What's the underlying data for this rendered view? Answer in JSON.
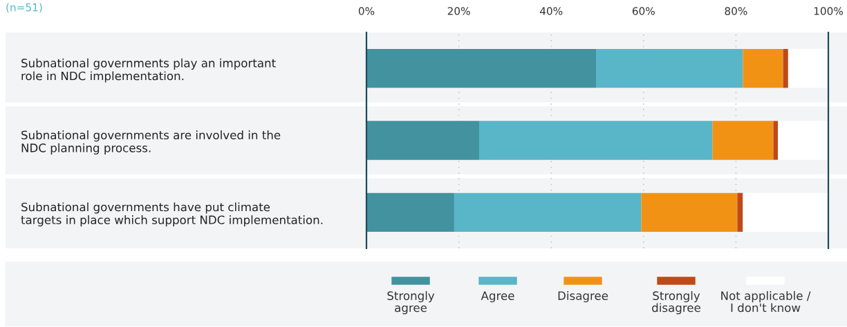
{
  "chart_data": {
    "type": "bar",
    "orientation": "horizontal",
    "stacked": true,
    "categories": [
      "Subnational governments play an important\nrole in NDC implementation.",
      "Subnational governments are involved in the\nNDC planning process.",
      "Subnational governments have put climate\ntargets in place which support NDC implementation."
    ],
    "series": [
      {
        "name": "Strongly\nagree",
        "color": "#42929f",
        "values": [
          49.7,
          24.4,
          19.0
        ]
      },
      {
        "name": "Agree",
        "color": "#58b6c8",
        "values": [
          31.8,
          50.5,
          40.5
        ]
      },
      {
        "name": "Disagree",
        "color": "#f29215",
        "values": [
          8.7,
          13.2,
          20.8
        ]
      },
      {
        "name": "Strongly\ndisagree",
        "color": "#c04a17",
        "values": [
          1.1,
          1.0,
          1.2
        ]
      },
      {
        "name": "Not applicable /\nI don't know",
        "color": "#ffffff",
        "values": [
          8.7,
          10.9,
          18.5
        ]
      }
    ],
    "xlim": [
      0,
      100
    ],
    "xticks": [
      {
        "value": 0,
        "label": "0%"
      },
      {
        "value": 20,
        "label": "20%"
      },
      {
        "value": 40,
        "label": "40%"
      },
      {
        "value": 60,
        "label": "60%"
      },
      {
        "value": 80,
        "label": "80%"
      },
      {
        "value": 100,
        "label": "100%"
      }
    ],
    "grid": "x",
    "legend": "bottom",
    "annotations": [
      "(n=51)"
    ]
  }
}
